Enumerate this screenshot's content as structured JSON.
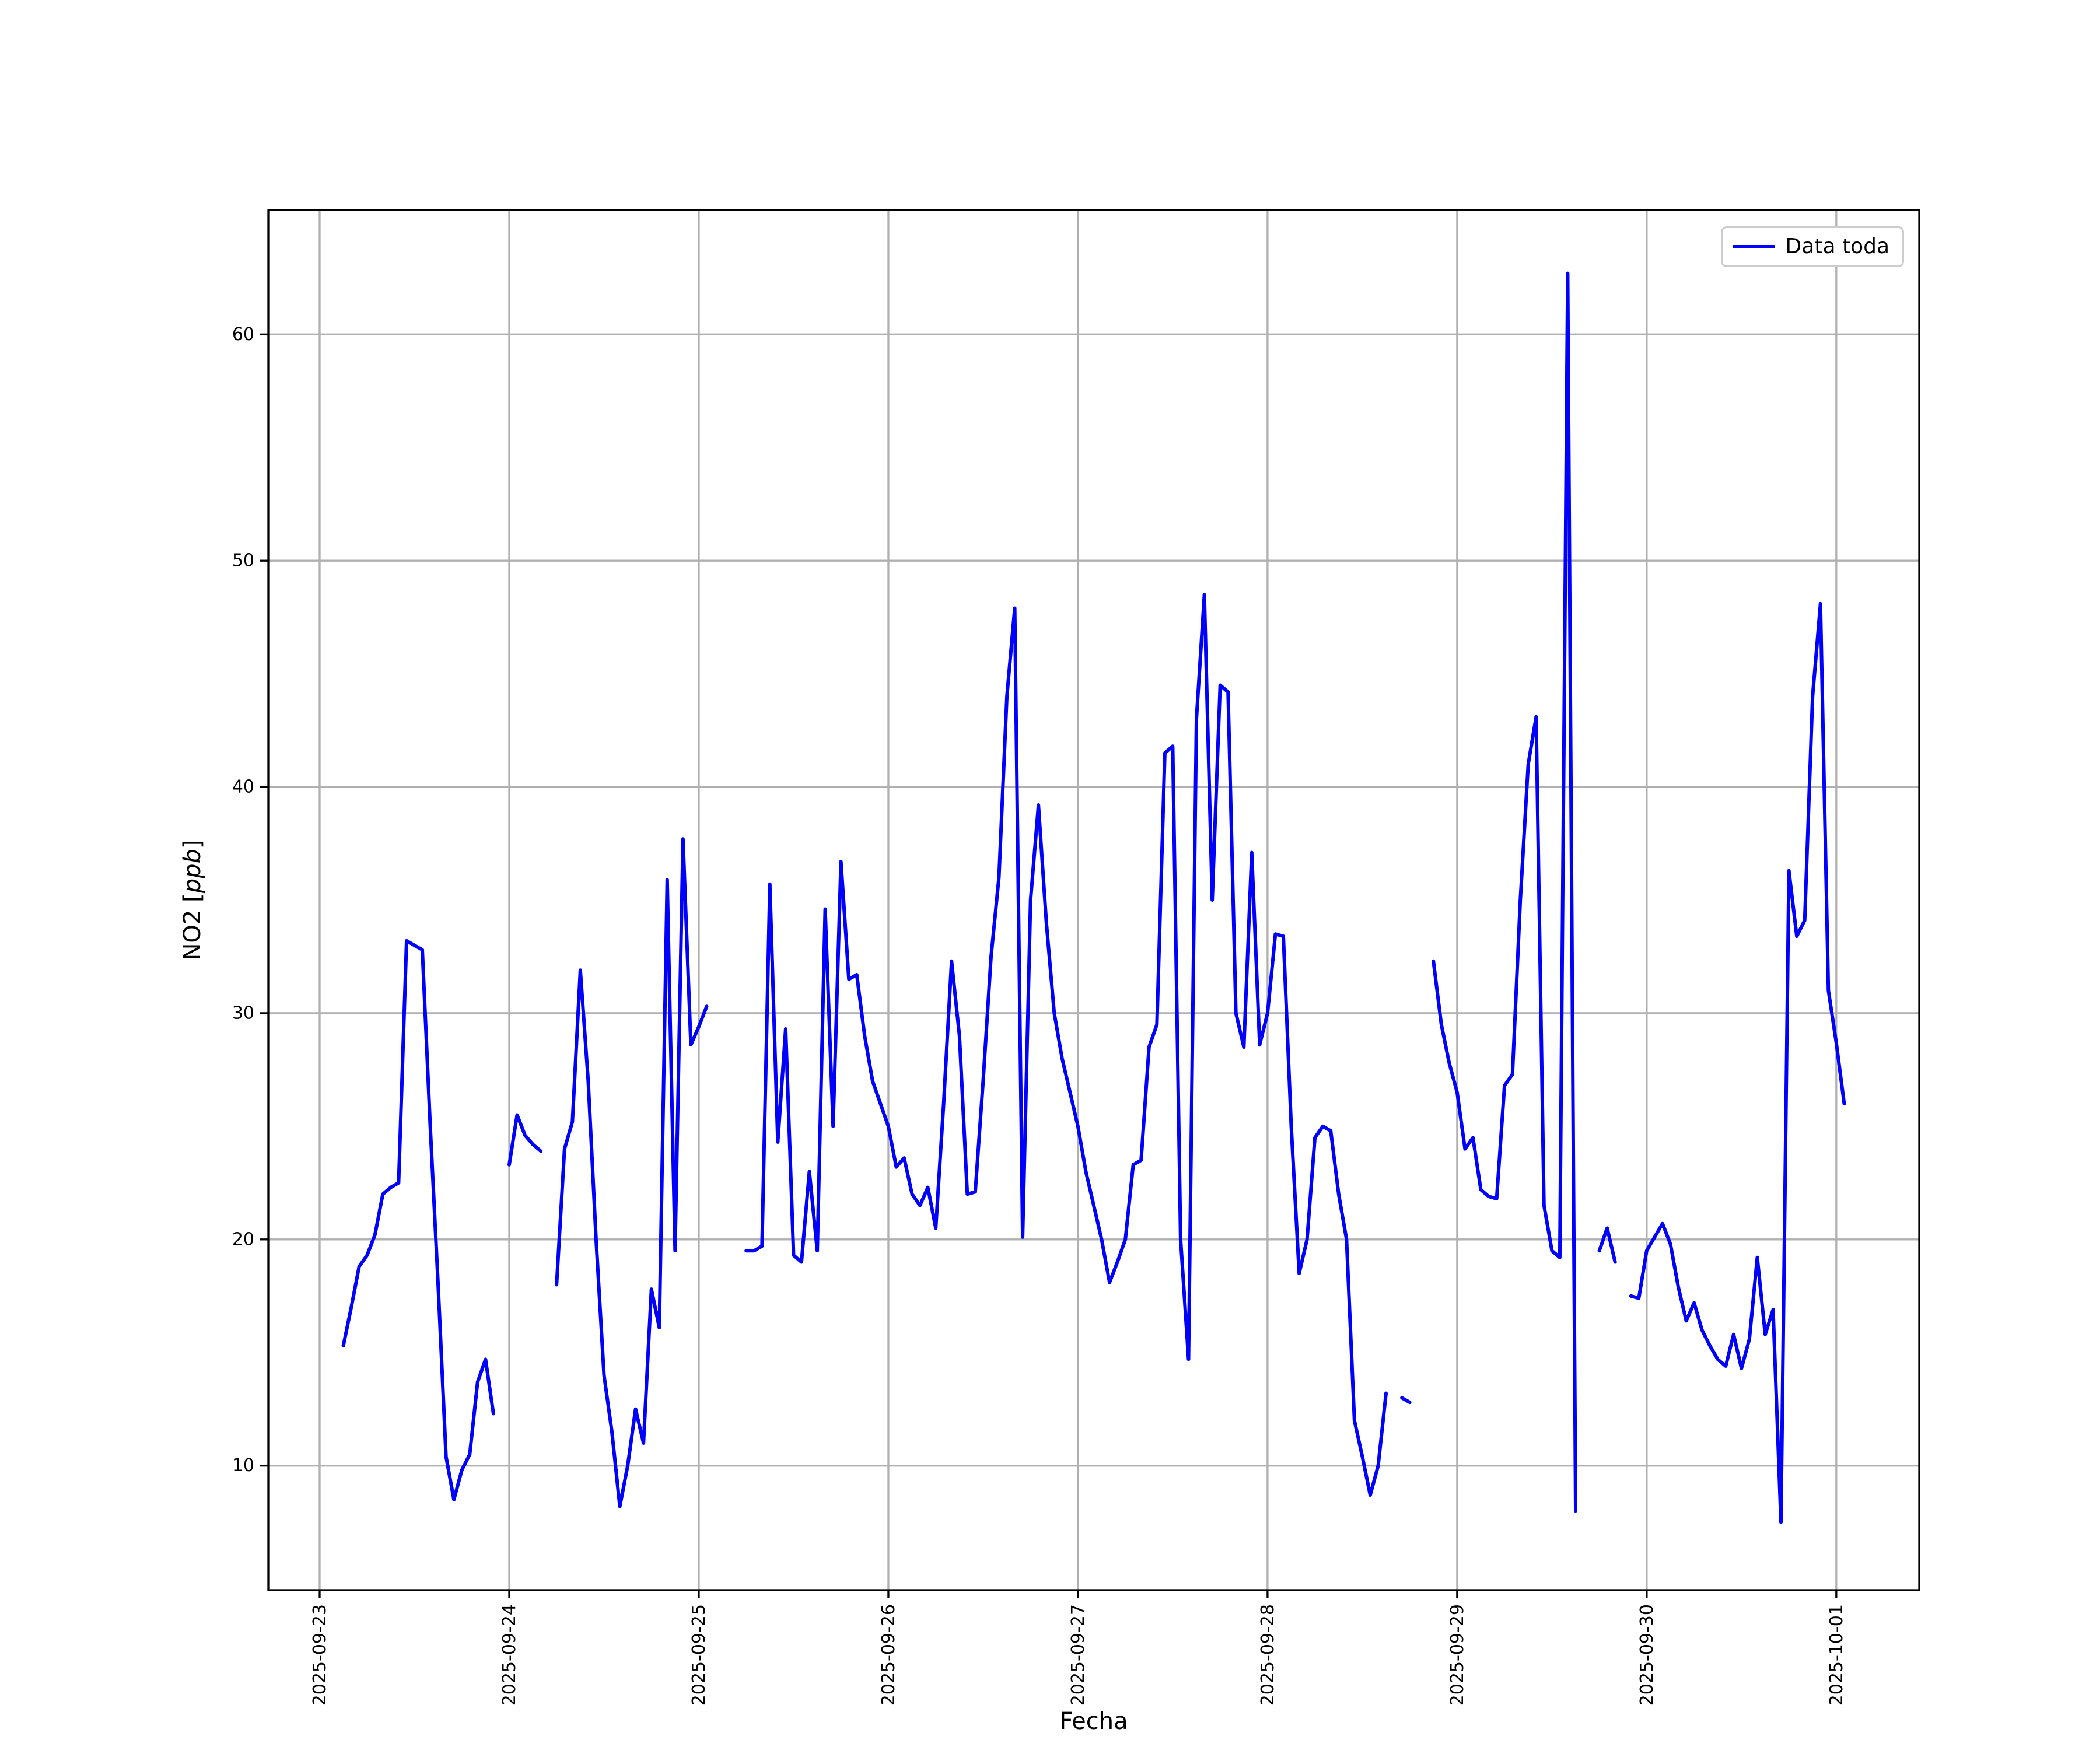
{
  "figure": {
    "background": "#ffffff",
    "xlabel": "Fecha",
    "ylabel": "NO2 [ppb]",
    "ylabel_parts": {
      "prefix": "NO2 [",
      "italic": "ppb",
      "suffix": "]"
    },
    "legend": {
      "label": "Data toda",
      "line_color": "#0000ff"
    }
  },
  "chart_data": {
    "type": "line",
    "title": "",
    "xlabel": "Fecha",
    "ylabel": "NO2 [ppb]",
    "legend_entries": [
      "Data toda"
    ],
    "legend_position": "upper right",
    "line_color": "#0000ff",
    "grid": true,
    "grid_color": "#b0b0b0",
    "ylim": [
      4.5,
      65.5
    ],
    "y_ticks": [
      10,
      20,
      30,
      40,
      50,
      60
    ],
    "x_tick_labels": [
      "2025-09-23",
      "2025-09-24",
      "2025-09-25",
      "2025-09-26",
      "2025-09-27",
      "2025-09-28",
      "2025-09-29",
      "2025-09-30",
      "2025-10-01"
    ],
    "x_start": "2025-09-23 03:00",
    "x_start_hour": 3,
    "interval_hours": 1,
    "x_margin_frac": 0.05,
    "values": [
      15.3,
      17.0,
      18.8,
      19.3,
      20.2,
      22.0,
      22.3,
      22.5,
      33.2,
      33.0,
      32.8,
      25.0,
      18.0,
      10.4,
      8.5,
      9.8,
      10.5,
      13.7,
      14.7,
      12.3,
      null,
      23.3,
      25.5,
      24.6,
      24.2,
      23.9,
      null,
      18.0,
      24.0,
      25.2,
      31.9,
      27.0,
      20.0,
      14.0,
      11.5,
      8.2,
      10.0,
      12.5,
      11.0,
      17.8,
      16.1,
      35.9,
      19.5,
      37.7,
      28.6,
      29.4,
      30.3,
      null,
      null,
      null,
      null,
      19.5,
      19.5,
      19.7,
      35.7,
      24.3,
      29.3,
      19.3,
      19.0,
      23.0,
      19.5,
      34.6,
      25.0,
      36.7,
      31.5,
      31.7,
      29.0,
      27.0,
      26.0,
      25.0,
      23.2,
      23.6,
      22.0,
      21.5,
      22.3,
      20.5,
      26.0,
      32.3,
      29.0,
      22.0,
      22.1,
      27.0,
      32.5,
      36.0,
      44.0,
      47.9,
      20.1,
      35.0,
      39.2,
      34.0,
      30.0,
      28.0,
      26.5,
      25.0,
      23.0,
      21.5,
      20.0,
      18.1,
      19.0,
      20.0,
      23.3,
      23.5,
      28.5,
      29.5,
      41.5,
      41.8,
      20.0,
      14.7,
      43.0,
      48.5,
      35.0,
      44.5,
      44.2,
      30.0,
      28.5,
      37.1,
      28.6,
      30.0,
      33.5,
      33.4,
      25.0,
      18.5,
      20.0,
      24.5,
      25.0,
      24.8,
      22.0,
      20.0,
      12.0,
      10.4,
      8.7,
      10.0,
      13.2,
      null,
      13.0,
      12.8,
      null,
      null,
      32.3,
      29.5,
      27.8,
      26.5,
      24.0,
      24.5,
      22.2,
      21.9,
      21.8,
      26.8,
      27.3,
      35.0,
      41.0,
      43.1,
      21.5,
      19.5,
      19.2,
      62.7,
      8.0,
      null,
      null,
      19.5,
      20.5,
      19.0,
      null,
      17.5,
      17.4,
      19.5,
      20.1,
      20.7,
      19.8,
      17.9,
      16.4,
      17.2,
      16.0,
      15.3,
      14.7,
      14.4,
      15.8,
      14.3,
      15.6,
      19.2,
      15.8,
      16.9,
      7.5,
      36.3,
      33.4,
      34.1,
      44.0,
      48.1,
      31.0,
      28.7,
      26.0
    ]
  }
}
